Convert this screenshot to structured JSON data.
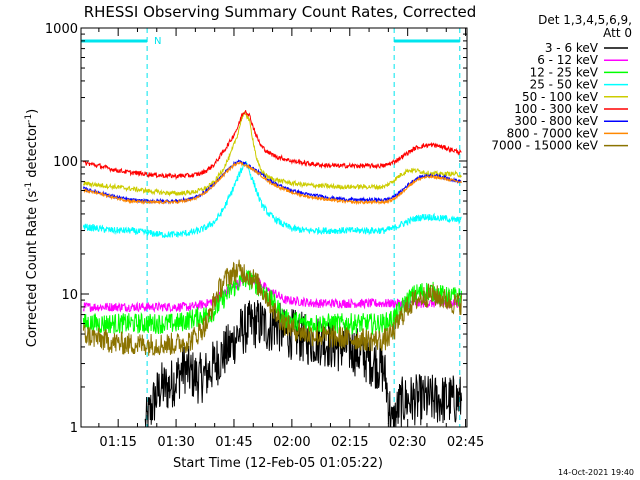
{
  "chart_data": {
    "type": "line",
    "title": "RHESSI Observing Summary Count Rates, Corrected",
    "xlabel": "Start Time (12-Feb-05 01:05:22)",
    "ylabel_main": "Corrected Count Rate (s",
    "ylabel_sup1": "-1",
    "ylabel_mid": " detector",
    "ylabel_sup2": "-1",
    "ylabel_end": ")",
    "yscale": "log",
    "ylim": [
      1,
      1000
    ],
    "y_ticks": [
      {
        "value": 1,
        "label": "1"
      },
      {
        "value": 10,
        "label": "10"
      },
      {
        "value": 100,
        "label": "100"
      },
      {
        "value": 1000,
        "label": "1000"
      }
    ],
    "xlim_minutes": [
      65.37,
      165.37
    ],
    "x_ticks": [
      {
        "minute": 75,
        "label": "01:15"
      },
      {
        "minute": 90,
        "label": "01:30"
      },
      {
        "minute": 105,
        "label": "01:45"
      },
      {
        "minute": 120,
        "label": "02:00"
      },
      {
        "minute": 135,
        "label": "02:15"
      },
      {
        "minute": 150,
        "label": "02:30"
      },
      {
        "minute": 165,
        "label": "02:45"
      }
    ],
    "legend": {
      "header1": "Det 1,3,4,5,6,9,",
      "header2": "Att 0",
      "placement": "right"
    },
    "annotation_n": "N",
    "night_intervals_minutes": [
      [
        65.37,
        82.5
      ],
      [
        146.5,
        163.5
      ]
    ],
    "series": [
      {
        "name": "3 - 6 keV",
        "color": "#000000",
        "x": [
          82,
          84,
          86,
          88,
          90,
          92,
          94,
          96,
          98,
          100,
          102,
          104,
          106,
          108,
          110,
          112,
          114,
          116,
          118,
          120,
          122,
          124,
          126,
          128,
          130,
          132,
          134,
          136,
          138,
          140,
          142,
          144,
          146,
          148,
          150,
          152,
          154,
          156,
          158,
          160,
          162,
          164
        ],
        "y": [
          1,
          1.5,
          2,
          2,
          2.3,
          2.8,
          2.5,
          2.3,
          2.5,
          3,
          3.5,
          4,
          5,
          5.5,
          6,
          6,
          5.5,
          6,
          5,
          5,
          4.8,
          4.5,
          4.5,
          4.5,
          4.2,
          4,
          4,
          3.8,
          3.5,
          3.2,
          3,
          2.6,
          1,
          1.5,
          1.6,
          1.6,
          1.6,
          1.6,
          1.6,
          1.6,
          1.6,
          1.6
        ]
      },
      {
        "name": "6 - 12 keV",
        "color": "#ff00ff",
        "x": [
          66,
          70,
          74,
          78,
          82,
          86,
          90,
          94,
          98,
          100,
          102,
          104,
          106,
          108,
          110,
          112,
          114,
          116,
          118,
          122,
          126,
          130,
          134,
          138,
          142,
          146,
          150,
          154,
          158,
          162,
          164
        ],
        "y": [
          8,
          8,
          8,
          8,
          8,
          8,
          8,
          8,
          8.5,
          9,
          10,
          11,
          12,
          13,
          13,
          12,
          10.5,
          10,
          9,
          8.8,
          8.5,
          8.5,
          8.5,
          8.5,
          8.5,
          8.5,
          8.5,
          8.5,
          8.5,
          8.5,
          8.5
        ]
      },
      {
        "name": "12 - 25 keV",
        "color": "#00ff00",
        "x": [
          66,
          70,
          74,
          78,
          82,
          86,
          90,
          94,
          98,
          100,
          102,
          104,
          106,
          108,
          110,
          112,
          114,
          116,
          118,
          120,
          124,
          128,
          132,
          136,
          140,
          144,
          146,
          148,
          150,
          152,
          154,
          156,
          158,
          160,
          162,
          164
        ],
        "y": [
          6,
          6,
          6,
          6,
          6,
          6,
          6,
          6.5,
          7,
          7.5,
          9,
          10.5,
          12,
          13,
          12.5,
          11,
          9.5,
          8,
          6.5,
          6.3,
          6,
          6,
          6,
          6,
          6,
          6,
          6.5,
          7.5,
          9,
          10,
          10.5,
          10.5,
          10,
          9.5,
          9.5,
          9.5
        ]
      },
      {
        "name": "25 - 50 keV",
        "color": "#00ffff",
        "x": [
          66,
          70,
          74,
          78,
          82,
          86,
          90,
          94,
          96,
          98,
          100,
          102,
          104,
          106,
          108,
          110,
          112,
          114,
          116,
          118,
          120,
          124,
          128,
          132,
          136,
          140,
          144,
          146,
          148,
          150,
          152,
          154,
          156,
          158,
          160,
          162,
          164
        ],
        "y": [
          32,
          31,
          30,
          30,
          29,
          28,
          28,
          29,
          30,
          32,
          35,
          42,
          55,
          75,
          100,
          70,
          48,
          40,
          36,
          33,
          31,
          30,
          30,
          30,
          30,
          30,
          30,
          31,
          33,
          35,
          37,
          38,
          38,
          37,
          37,
          36,
          36
        ]
      },
      {
        "name": "50 - 100 keV",
        "color": "#cccc00",
        "x": [
          66,
          70,
          74,
          78,
          82,
          86,
          90,
          94,
          96,
          98,
          100,
          102,
          104,
          106,
          107,
          108,
          109,
          110,
          111,
          112,
          114,
          116,
          118,
          120,
          124,
          128,
          132,
          136,
          140,
          144,
          146,
          148,
          150,
          152,
          154,
          156,
          158,
          160,
          162,
          164
        ],
        "y": [
          68,
          66,
          64,
          62,
          60,
          58,
          57,
          58,
          60,
          63,
          70,
          85,
          110,
          160,
          210,
          230,
          200,
          140,
          100,
          85,
          75,
          72,
          70,
          68,
          66,
          65,
          64,
          64,
          64,
          64,
          70,
          78,
          85,
          85,
          83,
          80,
          80,
          80,
          80,
          78
        ]
      },
      {
        "name": "100 - 300 keV",
        "color": "#ff0000",
        "x": [
          66,
          70,
          74,
          78,
          82,
          86,
          90,
          94,
          96,
          98,
          100,
          102,
          104,
          106,
          107,
          108,
          109,
          110,
          111,
          112,
          114,
          116,
          118,
          120,
          124,
          128,
          132,
          136,
          140,
          144,
          146,
          148,
          150,
          152,
          154,
          156,
          158,
          160,
          162,
          164
        ],
        "y": [
          97,
          92,
          86,
          82,
          80,
          78,
          77,
          78,
          80,
          85,
          95,
          115,
          140,
          180,
          220,
          240,
          220,
          180,
          150,
          130,
          115,
          108,
          104,
          100,
          96,
          93,
          92,
          92,
          92,
          92,
          97,
          105,
          115,
          125,
          130,
          132,
          130,
          125,
          120,
          115
        ]
      },
      {
        "name": "300 - 800 keV",
        "color": "#0000ff",
        "x": [
          66,
          70,
          74,
          78,
          82,
          86,
          90,
          94,
          96,
          98,
          100,
          102,
          104,
          106,
          108,
          110,
          112,
          114,
          116,
          118,
          120,
          124,
          128,
          132,
          136,
          140,
          144,
          146,
          148,
          150,
          152,
          154,
          156,
          158,
          160,
          162,
          164
        ],
        "y": [
          62,
          58,
          54,
          51,
          50,
          50,
          50,
          52,
          55,
          60,
          68,
          78,
          90,
          100,
          95,
          88,
          80,
          72,
          67,
          63,
          60,
          56,
          54,
          52,
          51,
          51,
          51,
          53,
          58,
          66,
          73,
          77,
          78,
          77,
          75,
          72,
          70
        ]
      },
      {
        "name": "800 - 7000 keV",
        "color": "#ff8800",
        "x": [
          66,
          70,
          74,
          78,
          82,
          86,
          90,
          94,
          96,
          98,
          100,
          102,
          104,
          106,
          108,
          110,
          112,
          114,
          116,
          118,
          120,
          124,
          128,
          132,
          136,
          140,
          144,
          146,
          148,
          150,
          152,
          154,
          156,
          158,
          160,
          162,
          164
        ],
        "y": [
          60,
          57,
          53,
          50,
          49,
          49,
          49,
          51,
          54,
          59,
          67,
          77,
          88,
          98,
          93,
          86,
          78,
          70,
          65,
          61,
          58,
          54,
          52,
          50,
          49,
          49,
          49,
          51,
          56,
          64,
          71,
          75,
          76,
          75,
          73,
          71,
          69
        ]
      },
      {
        "name": "7000 - 15000 keV",
        "color": "#8b7300",
        "x": [
          66,
          70,
          74,
          78,
          82,
          86,
          90,
          94,
          98,
          100,
          102,
          104,
          106,
          108,
          110,
          112,
          114,
          116,
          118,
          120,
          124,
          128,
          132,
          136,
          140,
          144,
          146,
          148,
          150,
          152,
          154,
          156,
          158,
          160,
          162,
          164
        ],
        "y": [
          5,
          4.6,
          4.3,
          4.2,
          4.2,
          4.2,
          4.2,
          4.5,
          6,
          9,
          12,
          14,
          15,
          14.5,
          13,
          11,
          9,
          7,
          6,
          5.5,
          5,
          4.8,
          4.7,
          4.6,
          4.5,
          4.5,
          5,
          6.5,
          8,
          9,
          9.5,
          10,
          9.5,
          9,
          8.5,
          8.5
        ]
      }
    ]
  },
  "footer": {
    "timestamp": "14-Oct-2021 19:40"
  }
}
